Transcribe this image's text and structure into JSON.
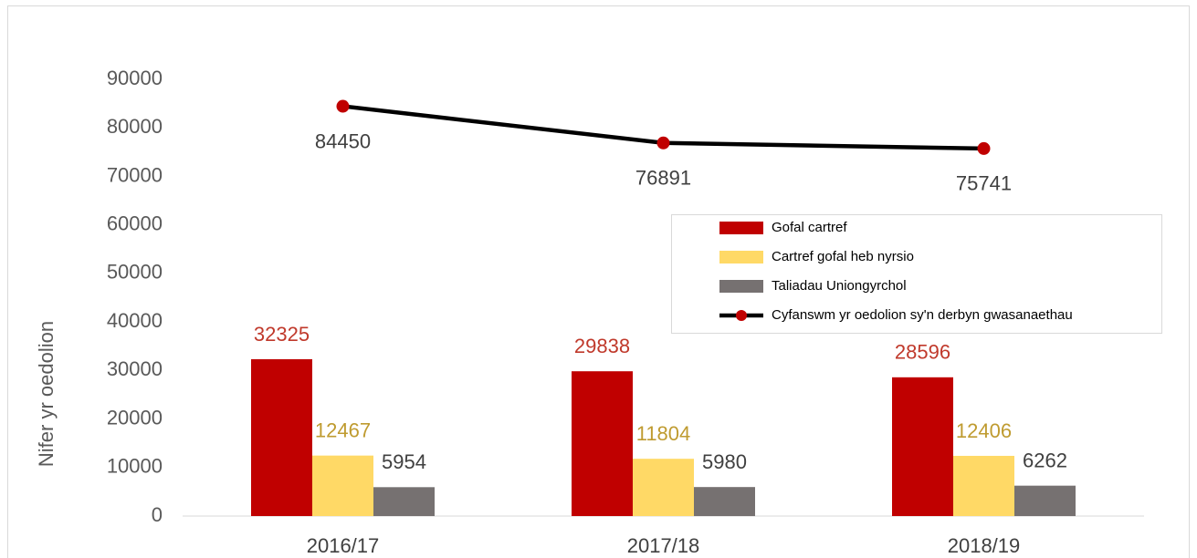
{
  "chart_data": {
    "type": "bar",
    "y_axis_label": "Nifer yr oedolion",
    "categories": [
      "2016/17",
      "2017/18",
      "2018/19"
    ],
    "series": [
      {
        "name": "Gofal cartref",
        "color": "#c00000",
        "label_color": "#c0392b",
        "values": [
          32325,
          29838,
          28596
        ]
      },
      {
        "name": "Cartref gofal heb nyrsio",
        "color": "#ffd966",
        "label_color": "#bf9b30",
        "values": [
          12467,
          11804,
          12406
        ]
      },
      {
        "name": "Taliadau Uniongyrchol",
        "color": "#767171",
        "label_color": "#404040",
        "values": [
          5954,
          5980,
          6262
        ]
      },
      {
        "name": "Cyfanswm yr oedolion sy'n derbyn gwasanaethau",
        "type": "line",
        "color": "#000000",
        "marker_color": "#c00000",
        "label_color": "#404040",
        "values": [
          84450,
          76891,
          75741
        ]
      }
    ],
    "ylim": [
      0,
      90000
    ],
    "yticks": [
      0,
      10000,
      20000,
      30000,
      40000,
      50000,
      60000,
      70000,
      80000,
      90000
    ],
    "grid": false
  }
}
